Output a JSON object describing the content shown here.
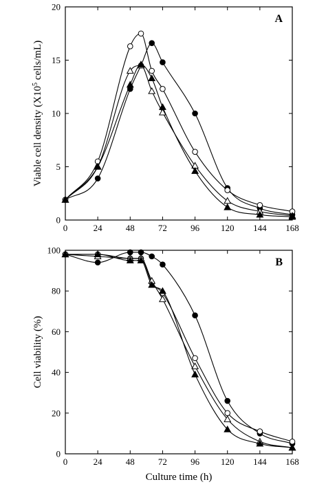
{
  "chart_data": [
    {
      "type": "line",
      "panel": "A",
      "ylabel": "Viable cell density (X10",
      "ylabel_sup": "5",
      "ylabel_tail": " cells/mL)",
      "xlabel": "",
      "xlim": [
        0,
        168
      ],
      "ylim": [
        0,
        20
      ],
      "xticks": [
        0,
        24,
        48,
        72,
        96,
        120,
        144,
        168
      ],
      "yticks": [
        0,
        5,
        10,
        15,
        20
      ],
      "series": [
        {
          "marker": "filled-circle",
          "x": [
            0,
            24,
            48,
            56,
            64,
            72,
            96,
            120,
            144,
            168
          ],
          "y": [
            1.9,
            3.9,
            12.3,
            14.5,
            16.6,
            14.8,
            10.0,
            3.0,
            1.1,
            0.5
          ]
        },
        {
          "marker": "open-circle",
          "x": [
            0,
            24,
            48,
            56,
            64,
            72,
            96,
            120,
            144,
            168
          ],
          "y": [
            1.9,
            5.5,
            16.3,
            17.5,
            14.0,
            12.3,
            6.4,
            2.8,
            1.4,
            0.8
          ]
        },
        {
          "marker": "open-triangle",
          "x": [
            0,
            24,
            48,
            56,
            64,
            72,
            96,
            120,
            144,
            168
          ],
          "y": [
            1.9,
            5.0,
            14.0,
            14.5,
            12.1,
            10.1,
            5.1,
            1.8,
            0.8,
            0.4
          ]
        },
        {
          "marker": "filled-triangle",
          "x": [
            0,
            24,
            48,
            56,
            64,
            72,
            96,
            120,
            144,
            168
          ],
          "y": [
            1.9,
            5.0,
            12.7,
            14.6,
            13.3,
            10.6,
            4.6,
            1.2,
            0.5,
            0.3
          ]
        }
      ]
    },
    {
      "type": "line",
      "panel": "B",
      "ylabel": "Cell viability (%)",
      "xlabel": "Culture time (h)",
      "xlim": [
        0,
        168
      ],
      "ylim": [
        0,
        100
      ],
      "xticks": [
        0,
        24,
        48,
        72,
        96,
        120,
        144,
        168
      ],
      "yticks": [
        0,
        20,
        40,
        60,
        80,
        100
      ],
      "series": [
        {
          "marker": "filled-circle",
          "x": [
            0,
            24,
            48,
            56,
            64,
            72,
            96,
            120,
            144,
            168
          ],
          "y": [
            98,
            94,
            99,
            99,
            97,
            93,
            68,
            26,
            10,
            5
          ]
        },
        {
          "marker": "open-circle",
          "x": [
            0,
            24,
            48,
            56,
            64,
            72,
            96,
            120,
            144,
            168
          ],
          "y": [
            98,
            98,
            96,
            96,
            84,
            79,
            47,
            20,
            11,
            6
          ]
        },
        {
          "marker": "open-triangle",
          "x": [
            0,
            24,
            48,
            56,
            64,
            72,
            96,
            120,
            144,
            168
          ],
          "y": [
            98,
            97,
            96,
            96,
            85,
            76,
            43,
            17,
            6,
            3
          ]
        },
        {
          "marker": "filled-triangle",
          "x": [
            0,
            24,
            48,
            56,
            64,
            72,
            96,
            120,
            144,
            168
          ],
          "y": [
            98,
            98,
            95,
            95,
            83,
            80,
            39,
            12,
            5,
            3
          ]
        }
      ]
    }
  ]
}
